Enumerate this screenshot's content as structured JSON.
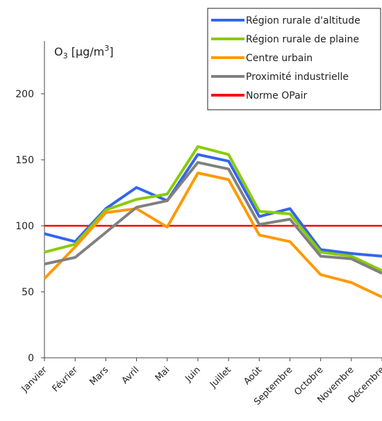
{
  "chart_data": {
    "type": "line",
    "ylabel": "O3 [µg/m3]",
    "ylabel_parts": {
      "main": "O",
      "sub": "3",
      "unit": " [µg/m",
      "sup": "3",
      "close": "]"
    },
    "ylim": [
      0,
      240
    ],
    "yticks": [
      0,
      50,
      100,
      150,
      200
    ],
    "ytick_labels": [
      "0",
      "50",
      "100",
      "150",
      "200"
    ],
    "categories": [
      "Janvier",
      "Février",
      "Mars",
      "Avril",
      "Mai",
      "Juin",
      "Juillet",
      "Août",
      "Septembre",
      "Octobre",
      "Novembre",
      "Décembre"
    ],
    "legend_position": "top-right",
    "grid": false,
    "series": [
      {
        "name": "Région rurale d'altitude",
        "color": "#3366ee",
        "values": [
          94,
          88,
          113,
          129,
          119,
          154,
          149,
          107,
          113,
          82,
          79,
          77
        ]
      },
      {
        "name": "Région rurale de plaine",
        "color": "#88cc00",
        "values": [
          80,
          86,
          112,
          120,
          124,
          160,
          154,
          111,
          109,
          80,
          77,
          66
        ]
      },
      {
        "name": "Centre urbain",
        "color": "#ff9900",
        "values": [
          60,
          84,
          110,
          113,
          99,
          140,
          135,
          93,
          88,
          63,
          57,
          46
        ]
      },
      {
        "name": "Proximité industrielle",
        "color": "#808080",
        "values": [
          71,
          76,
          95,
          114,
          119,
          148,
          143,
          101,
          105,
          77,
          75,
          64
        ]
      }
    ],
    "reference_line": {
      "name": "Norme OPair",
      "value": 100,
      "color": "#ff0000"
    }
  }
}
